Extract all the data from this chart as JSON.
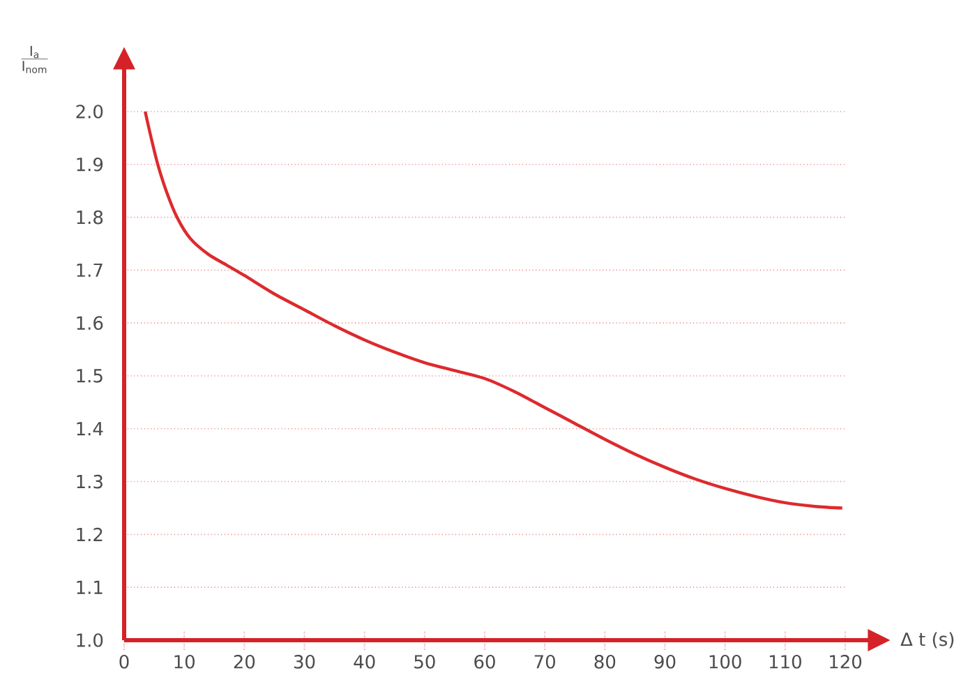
{
  "chart_data": {
    "type": "line",
    "xlabel": "Δ t (s)",
    "ylabel": "\\frac{\\mathrm{I}_{\\mathrm{a}}}{\\mathrm{I}_{\\mathrm{nom}}}",
    "x": [
      3.5,
      4.5,
      5.6,
      7,
      8.8,
      11,
      14,
      17,
      20,
      25,
      30,
      35,
      40,
      45,
      50,
      55,
      60,
      65,
      70,
      75,
      80,
      85,
      90,
      95,
      100,
      105,
      110,
      115,
      119.5
    ],
    "series": [
      {
        "color": "#dd2a2e",
        "values": [
          2.0,
          1.95,
          1.9,
          1.85,
          1.8,
          1.76,
          1.73,
          1.71,
          1.69,
          1.655,
          1.625,
          1.595,
          1.568,
          1.545,
          1.525,
          1.51,
          1.495,
          1.47,
          1.44,
          1.41,
          1.38,
          1.352,
          1.327,
          1.305,
          1.287,
          1.272,
          1.26,
          1.253,
          1.25
        ]
      }
    ],
    "xlim": [
      0,
      120
    ],
    "ylim": [
      1.0,
      2.0
    ],
    "xticks": [
      0,
      10,
      20,
      30,
      40,
      50,
      60,
      70,
      80,
      90,
      100,
      110,
      120
    ],
    "yticks": [
      {
        "value": 1.0,
        "label": "1.0"
      },
      1.1,
      1.2,
      1.3,
      1.4,
      1.5,
      1.6,
      1.7,
      1.8,
      1.9,
      {
        "value": 2.0,
        "label": "2.0"
      }
    ],
    "grid": "y",
    "marker": "none",
    "line_style": "solid"
  }
}
